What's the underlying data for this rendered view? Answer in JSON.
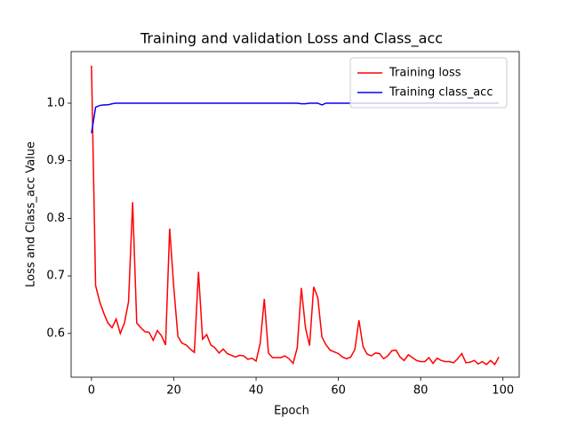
{
  "chart_data": {
    "type": "line",
    "title": "Training and validation Loss and Class_acc",
    "x_label": "Epoch",
    "y_label": "Loss and Class_acc Value",
    "x": [
      0,
      1,
      2,
      3,
      4,
      5,
      6,
      7,
      8,
      9,
      10,
      11,
      12,
      13,
      14,
      15,
      16,
      17,
      18,
      19,
      20,
      21,
      22,
      23,
      24,
      25,
      26,
      27,
      28,
      29,
      30,
      31,
      32,
      33,
      34,
      35,
      36,
      37,
      38,
      39,
      40,
      41,
      42,
      43,
      44,
      45,
      46,
      47,
      48,
      49,
      50,
      51,
      52,
      53,
      54,
      55,
      56,
      57,
      58,
      59,
      60,
      61,
      62,
      63,
      64,
      65,
      66,
      67,
      68,
      69,
      70,
      71,
      72,
      73,
      74,
      75,
      76,
      77,
      78,
      79,
      80,
      81,
      82,
      83,
      84,
      85,
      86,
      87,
      88,
      89,
      90,
      91,
      92,
      93,
      94,
      95,
      96,
      97,
      98,
      99
    ],
    "series": [
      {
        "name": "Training loss",
        "color": "#ff0000",
        "values": [
          1.065,
          0.683,
          0.655,
          0.635,
          0.618,
          0.61,
          0.625,
          0.6,
          0.618,
          0.655,
          0.828,
          0.618,
          0.61,
          0.603,
          0.602,
          0.588,
          0.605,
          0.596,
          0.58,
          0.782,
          0.68,
          0.595,
          0.583,
          0.58,
          0.573,
          0.567,
          0.707,
          0.59,
          0.598,
          0.58,
          0.575,
          0.566,
          0.573,
          0.565,
          0.562,
          0.559,
          0.562,
          0.561,
          0.555,
          0.557,
          0.552,
          0.583,
          0.66,
          0.566,
          0.558,
          0.558,
          0.558,
          0.561,
          0.556,
          0.548,
          0.575,
          0.679,
          0.61,
          0.579,
          0.681,
          0.662,
          0.594,
          0.58,
          0.571,
          0.568,
          0.565,
          0.559,
          0.556,
          0.559,
          0.572,
          0.623,
          0.577,
          0.564,
          0.561,
          0.566,
          0.565,
          0.556,
          0.561,
          0.57,
          0.571,
          0.559,
          0.553,
          0.563,
          0.558,
          0.553,
          0.551,
          0.551,
          0.558,
          0.548,
          0.557,
          0.553,
          0.551,
          0.551,
          0.549,
          0.556,
          0.565,
          0.549,
          0.55,
          0.553,
          0.547,
          0.551,
          0.546,
          0.553,
          0.546,
          0.559
        ]
      },
      {
        "name": "Training class_acc",
        "color": "#0000ff",
        "values": [
          0.948,
          0.993,
          0.996,
          0.997,
          0.997,
          0.999,
          1.0,
          1.0,
          1.0,
          1.0,
          1.0,
          1.0,
          1.0,
          1.0,
          1.0,
          1.0,
          1.0,
          1.0,
          1.0,
          1.0,
          1.0,
          1.0,
          1.0,
          1.0,
          1.0,
          1.0,
          1.0,
          1.0,
          1.0,
          1.0,
          1.0,
          1.0,
          1.0,
          1.0,
          1.0,
          1.0,
          1.0,
          1.0,
          1.0,
          1.0,
          1.0,
          1.0,
          1.0,
          1.0,
          1.0,
          1.0,
          1.0,
          1.0,
          1.0,
          1.0,
          1.0,
          0.999,
          0.999,
          1.0,
          1.0,
          1.0,
          0.997,
          1.0,
          1.0,
          1.0,
          1.0,
          1.0,
          1.0,
          1.0,
          1.0,
          1.0,
          1.0,
          1.0,
          1.0,
          1.0,
          1.0,
          1.0,
          1.0,
          1.0,
          1.0,
          1.0,
          1.0,
          1.0,
          1.0,
          1.0,
          1.0,
          1.0,
          1.0,
          1.0,
          1.0,
          1.0,
          1.0,
          1.0,
          1.0,
          1.0,
          1.0,
          1.0,
          1.0,
          1.0,
          1.0,
          1.0,
          1.0,
          1.0,
          1.0,
          1.0
        ]
      }
    ],
    "xlim": [
      -4.95,
      103.95
    ],
    "xticks": [
      0,
      20,
      40,
      60,
      80,
      100
    ],
    "ylim": [
      0.524,
      1.0896
    ],
    "yticks": [
      0.6,
      0.7,
      0.8,
      0.9,
      {
        "value": 1,
        "label": "1.0"
      }
    ],
    "legend": "upper right",
    "grid": false
  }
}
